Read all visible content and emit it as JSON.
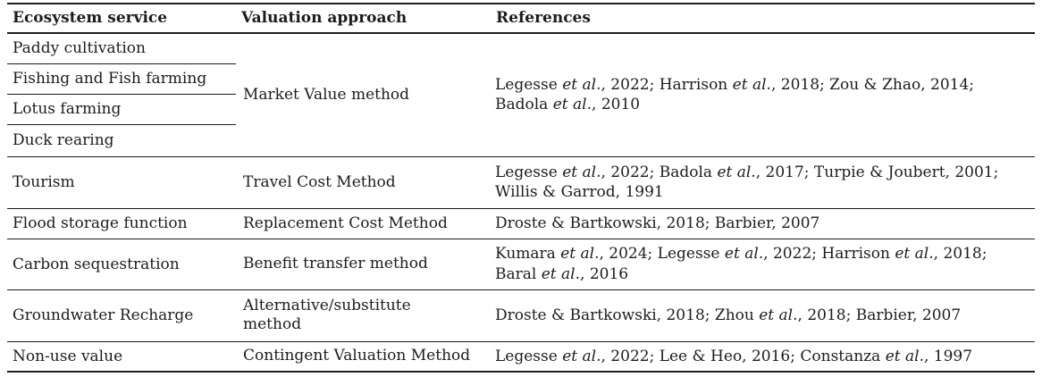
{
  "page": {
    "background": "#ffffff",
    "text_color": "#1c1c1c",
    "rule_color": "#1d1d1d"
  },
  "table": {
    "headers": [
      "Ecosystem service",
      "Valuation approach",
      "References"
    ],
    "groups": [
      {
        "services": [
          "Paddy cultivation",
          "Fishing and Fish farming",
          "Lotus farming",
          "Duck rearing"
        ],
        "approach": "Market Value method",
        "references": "Legesse *et al.*, 2022; Harrison *et al.*, 2018; Zou & Zhao, 2014;\nBadola *et al.*, 2010"
      },
      {
        "services": [
          "Tourism"
        ],
        "approach": "Travel Cost Method",
        "references": "Legesse *et al.*, 2022; Badola *et al.*, 2017; Turpie & Joubert, 2001;\nWillis & Garrod, 1991"
      },
      {
        "services": [
          "Flood storage function"
        ],
        "approach": "Replacement Cost Method",
        "references": "Droste & Bartkowski, 2018; Barbier, 2007"
      },
      {
        "services": [
          "Carbon sequestration"
        ],
        "approach": "Benefit transfer method",
        "references": "Kumara *et al.*, 2024; Legesse *et al.*, 2022; Harrison *et al.*, 2018;\nBaral *et al.*, 2016"
      },
      {
        "services": [
          "Groundwater Recharge"
        ],
        "approach": "Alternative/substitute\nmethod",
        "references": "Droste & Bartkowski, 2018; Zhou *et al.*, 2018; Barbier, 2007"
      },
      {
        "services": [
          "Non-use value"
        ],
        "approach": "Contingent Valuation Method",
        "references": "Legesse *et al.*, 2022; Lee & Heo, 2016; Constanza *et al.*, 1997"
      }
    ]
  }
}
